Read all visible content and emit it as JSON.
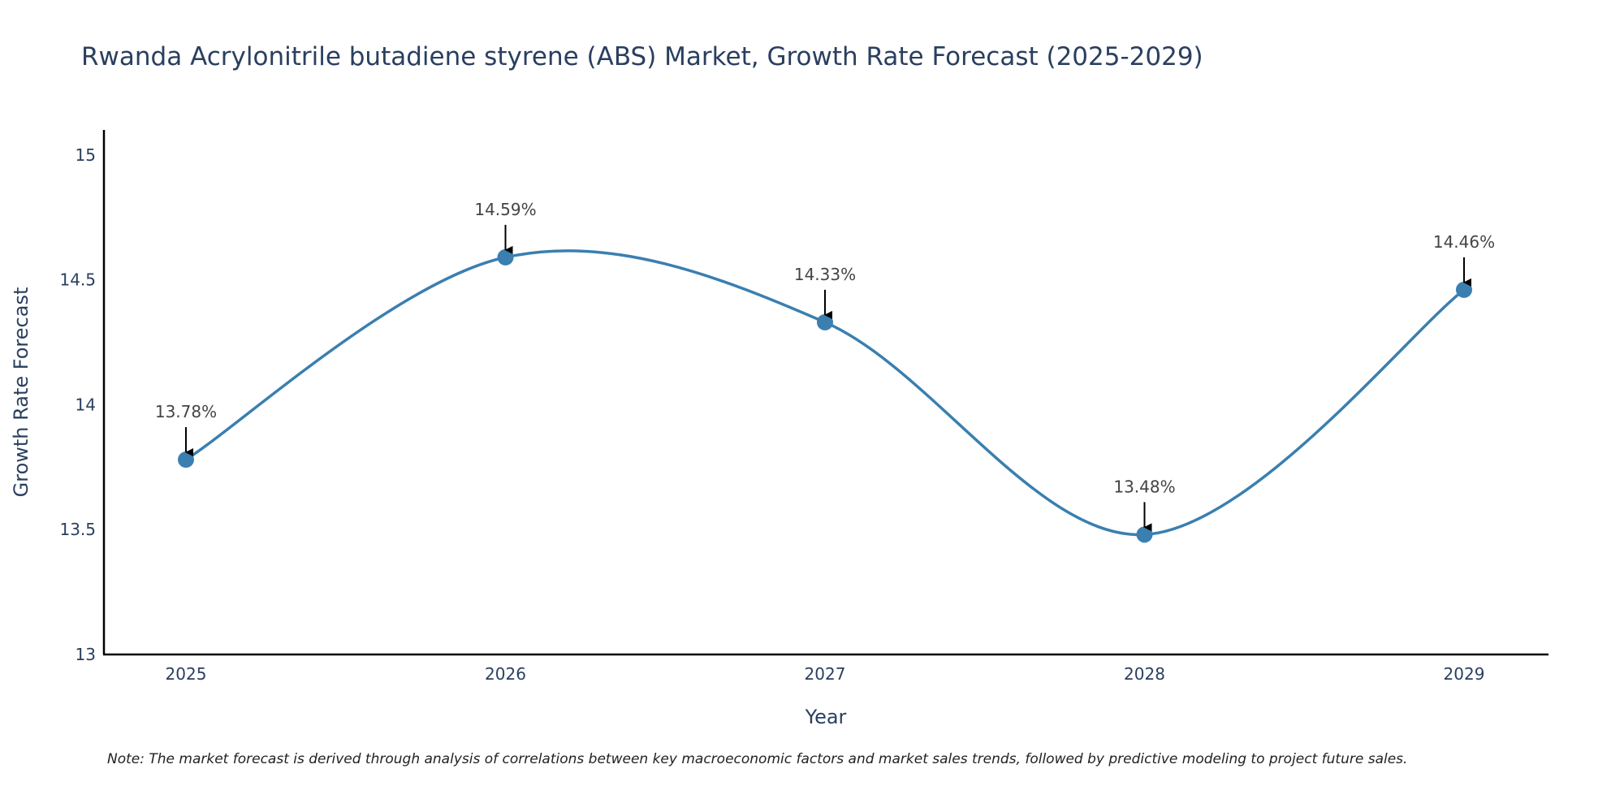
{
  "chart_data": {
    "type": "line",
    "title": "Rwanda Acrylonitrile butadiene styrene (ABS) Market, Growth Rate Forecast (2025-2029)",
    "xlabel": "Year",
    "ylabel": "Growth Rate Forecast",
    "categories": [
      "2025",
      "2026",
      "2027",
      "2028",
      "2029"
    ],
    "series": [
      {
        "name": "Growth Rate Forecast",
        "values": [
          13.78,
          14.59,
          14.33,
          13.48,
          14.46
        ],
        "labels": [
          "13.78%",
          "14.59%",
          "14.33%",
          "13.48%",
          "14.46%"
        ]
      }
    ],
    "ylim": [
      13,
      15.1
    ],
    "yticks": [
      13,
      13.5,
      14,
      14.5,
      15
    ],
    "ytick_labels": [
      "13",
      "13.5",
      "14",
      "14.5",
      "15"
    ],
    "grid": false,
    "line_color": "#3a7fb0",
    "marker_color": "#3a7fb0",
    "note": "Note: The market forecast is derived through analysis of correlations between key macroeconomic factors and market sales trends, followed by predictive modeling to project future sales."
  }
}
